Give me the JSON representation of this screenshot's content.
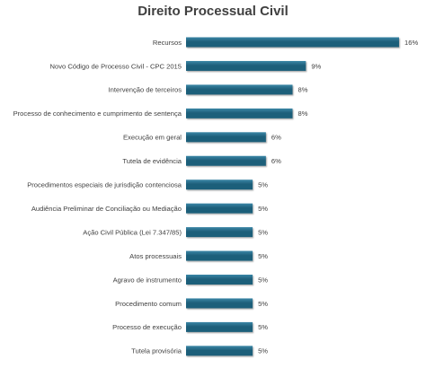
{
  "chart_data": {
    "type": "bar",
    "orientation": "horizontal",
    "title": "Direito Processual Civil",
    "categories": [
      "Recursos",
      "Novo Código de Processo Civil - CPC 2015",
      "Intervenção de terceiros",
      "Processo de conhecimento e cumprimento de sentença",
      "Execução em geral",
      "Tutela de evidência",
      "Procedimentos especiais de jurisdição contenciosa",
      "Audiência Preliminar de Conciliação ou Mediação",
      "Ação Civil Pública (Lei 7.347/85)",
      "Atos processuais",
      "Agravo de instrumento",
      "Procedimento comum",
      "Processo de execução",
      "Tutela provisória"
    ],
    "values": [
      16,
      9,
      8,
      8,
      6,
      6,
      5,
      5,
      5,
      5,
      5,
      5,
      5,
      5
    ],
    "value_labels": [
      "16%",
      "9%",
      "8%",
      "8%",
      "6%",
      "6%",
      "5%",
      "5%",
      "5%",
      "5%",
      "5%",
      "5%",
      "5%",
      "5%"
    ],
    "xlim": [
      0,
      16
    ],
    "bar_color": "#1f5f7a",
    "bar_highlight": "#3a86a6",
    "grid": false,
    "legend": "none"
  }
}
